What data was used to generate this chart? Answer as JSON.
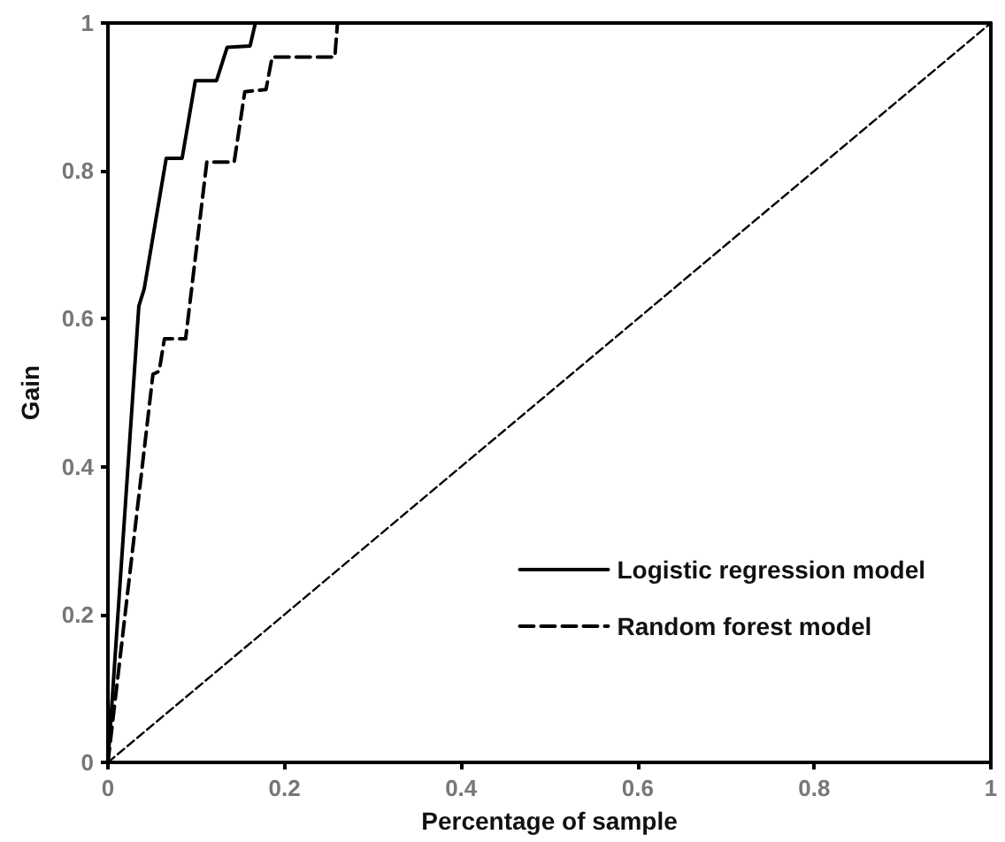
{
  "chart_data": {
    "type": "line",
    "xlabel": "Percentage of sample",
    "ylabel": "Gain",
    "xlim": [
      0,
      1
    ],
    "ylim": [
      0,
      1
    ],
    "xticks": [
      0,
      0.2,
      0.4,
      0.6,
      0.8,
      1
    ],
    "yticks": [
      0,
      0.2,
      0.4,
      0.6,
      0.8,
      1
    ],
    "grid": false,
    "legend": "bottom right",
    "marker": "none",
    "series": [
      {
        "name": "Logistic regression model",
        "color": "#000000",
        "line_style": "solid",
        "x": [
          0,
          0.035,
          0.041,
          0.066,
          0.084,
          0.099,
          0.123,
          0.135,
          0.161,
          0.167,
          1
        ],
        "values": [
          0,
          0.617,
          0.64,
          0.817,
          0.817,
          0.922,
          0.922,
          0.967,
          0.969,
          1,
          1
        ]
      },
      {
        "name": "Random forest model",
        "color": "#000000",
        "line_style": "dashed",
        "x": [
          0,
          0.051,
          0.058,
          0.064,
          0.088,
          0.112,
          0.143,
          0.155,
          0.179,
          0.186,
          0.257,
          0.26,
          1
        ],
        "values": [
          0,
          0.525,
          0.529,
          0.573,
          0.573,
          0.812,
          0.812,
          0.907,
          0.91,
          0.954,
          0.954,
          1,
          1
        ]
      },
      {
        "color": "#000000",
        "line_style": "dashed",
        "x": [
          0,
          1
        ],
        "values": [
          0,
          1
        ]
      }
    ]
  }
}
